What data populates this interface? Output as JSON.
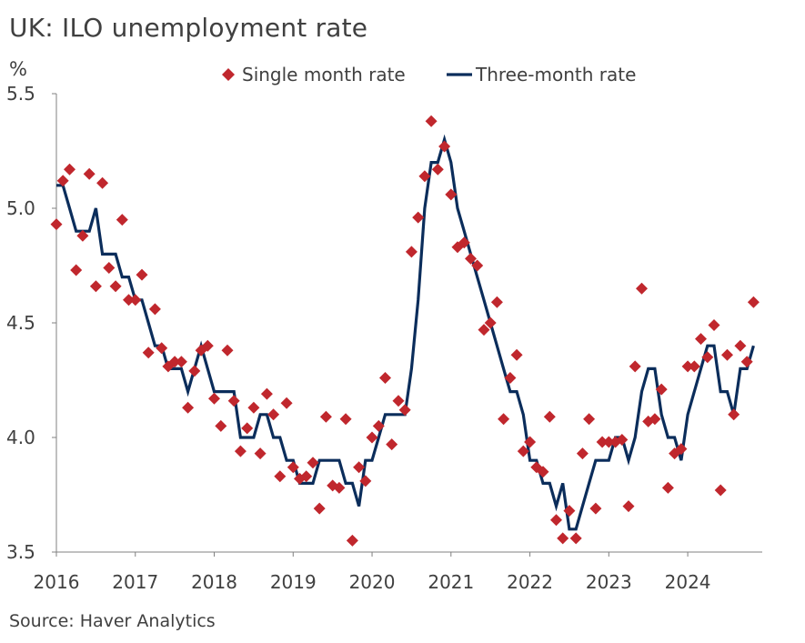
{
  "title": "UK: ILO unemployment rate",
  "unit": "%",
  "source": "Source: Haver Analytics",
  "colors": {
    "single": "#C0272D",
    "three": "#0B2D5B",
    "axis": "#808080"
  },
  "chart_data": {
    "type": "line",
    "x_start": "2016-01",
    "x_ticks": [
      "2016",
      "2017",
      "2018",
      "2019",
      "2020",
      "2021",
      "2022",
      "2023",
      "2024"
    ],
    "y_ticks": [
      "3.5",
      "4.0",
      "4.5",
      "5.0",
      "5.5"
    ],
    "ylim": [
      3.5,
      5.5
    ],
    "legend_position": "top",
    "series": [
      {
        "name": "Single month rate",
        "style": "diamond-markers",
        "values": [
          4.93,
          5.12,
          5.17,
          4.73,
          4.88,
          5.15,
          4.66,
          5.11,
          4.74,
          4.66,
          4.95,
          4.6,
          4.6,
          4.71,
          4.37,
          4.56,
          4.39,
          4.31,
          4.33,
          4.33,
          4.13,
          4.29,
          4.38,
          4.4,
          4.17,
          4.05,
          4.38,
          4.16,
          3.94,
          4.04,
          4.13,
          3.93,
          4.19,
          4.1,
          3.83,
          4.15,
          3.87,
          3.82,
          3.83,
          3.89,
          3.69,
          4.09,
          3.79,
          3.78,
          4.08,
          3.55,
          3.87,
          3.81,
          4.0,
          4.05,
          4.26,
          3.97,
          4.16,
          4.12,
          4.81,
          4.96,
          5.14,
          5.38,
          5.17,
          5.27,
          5.06,
          4.83,
          4.85,
          4.78,
          4.75,
          4.47,
          4.5,
          4.59,
          4.08,
          4.26,
          4.36,
          3.94,
          3.98,
          3.87,
          3.85,
          4.09,
          3.64,
          3.56,
          3.68,
          3.56,
          3.93,
          4.08,
          3.69,
          3.98,
          3.98,
          3.98,
          3.99,
          3.7,
          4.31,
          4.65,
          4.07,
          4.08,
          4.21,
          3.78,
          3.93,
          3.95,
          4.31,
          4.31,
          4.43,
          4.35,
          4.49,
          3.77,
          4.36,
          4.1,
          4.4,
          4.33,
          4.59
        ]
      },
      {
        "name": "Three-month rate",
        "style": "line",
        "values": [
          5.1,
          5.1,
          5.0,
          4.9,
          4.9,
          4.9,
          5.0,
          4.8,
          4.8,
          4.8,
          4.7,
          4.7,
          4.6,
          4.6,
          4.5,
          4.4,
          4.4,
          4.3,
          4.3,
          4.3,
          4.2,
          4.3,
          4.4,
          4.3,
          4.2,
          4.2,
          4.2,
          4.2,
          4.0,
          4.0,
          4.0,
          4.1,
          4.1,
          4.0,
          4.0,
          3.9,
          3.9,
          3.8,
          3.8,
          3.8,
          3.9,
          3.9,
          3.9,
          3.9,
          3.8,
          3.8,
          3.7,
          3.9,
          3.9,
          4.0,
          4.1,
          4.1,
          4.1,
          4.1,
          4.3,
          4.6,
          5.0,
          5.2,
          5.2,
          5.3,
          5.2,
          5.0,
          4.9,
          4.8,
          4.7,
          4.6,
          4.5,
          4.4,
          4.3,
          4.2,
          4.2,
          4.1,
          3.9,
          3.9,
          3.8,
          3.8,
          3.7,
          3.8,
          3.6,
          3.6,
          3.7,
          3.8,
          3.9,
          3.9,
          3.9,
          4.0,
          4.0,
          3.9,
          4.0,
          4.2,
          4.3,
          4.3,
          4.1,
          4.0,
          4.0,
          3.9,
          4.1,
          4.2,
          4.3,
          4.4,
          4.4,
          4.2,
          4.2,
          4.1,
          4.3,
          4.3,
          4.4
        ]
      }
    ]
  }
}
